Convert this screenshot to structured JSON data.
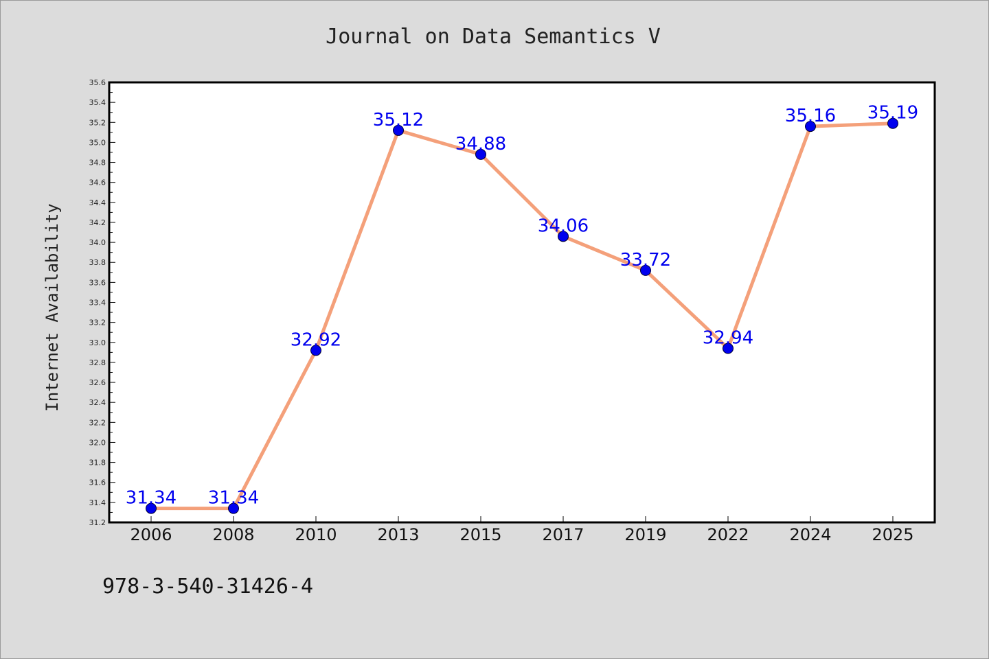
{
  "chart_data": {
    "type": "line",
    "title": "Journal on Data Semantics V",
    "xlabel": "",
    "ylabel": "Internet Availability",
    "categories": [
      "2006",
      "2008",
      "2010",
      "2013",
      "2015",
      "2017",
      "2019",
      "2022",
      "2024",
      "2025"
    ],
    "series": [
      {
        "values": [
          31.34,
          31.34,
          32.92,
          35.12,
          34.88,
          34.06,
          33.72,
          32.94,
          35.16,
          35.19
        ]
      }
    ],
    "data_labels": [
      "31.34",
      "31.34",
      "32.92",
      "35.12",
      "34.88",
      "34.06",
      "33.72",
      "32.94",
      "35.16",
      "35.19"
    ],
    "ylim": [
      31.2,
      35.6
    ],
    "y_ticks": [
      "31.2",
      "31.4",
      "31.6",
      "31.8",
      "32.0",
      "32.2",
      "32.4",
      "32.6",
      "32.8",
      "33.0",
      "33.2",
      "33.4",
      "33.6",
      "33.8",
      "34.0",
      "34.2",
      "34.4",
      "34.6",
      "34.8",
      "35.0",
      "35.2",
      "35.4",
      "35.6"
    ],
    "grid": false,
    "legend": "none",
    "colors": {
      "line": "#f4a07a",
      "marker": "#0000ee",
      "label": "#0000ee",
      "background": "#dcdcdc",
      "plot_background": "#ffffff"
    }
  },
  "footer": {
    "isbn": "978-3-540-31426-4"
  }
}
